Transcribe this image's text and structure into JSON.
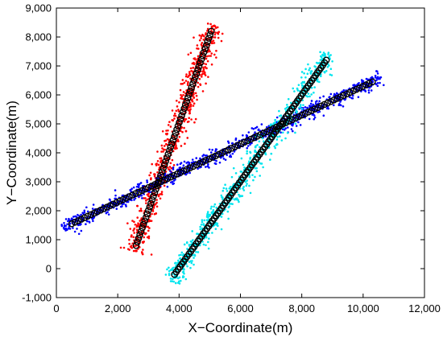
{
  "chart_data": {
    "type": "scatter",
    "title": "",
    "xlabel": "X−Coordinate(m)",
    "ylabel": "Y−Coordinate(m)",
    "xlim": [
      0,
      12000
    ],
    "ylim": [
      -1000,
      9000
    ],
    "x_ticks": [
      {
        "value": 0,
        "label": "0"
      },
      {
        "value": 2000,
        "label": "2,000"
      },
      {
        "value": 4000,
        "label": "4,000"
      },
      {
        "value": 6000,
        "label": "6,000"
      },
      {
        "value": 8000,
        "label": "8,000"
      },
      {
        "value": 10000,
        "label": "10,000"
      },
      {
        "value": 12000,
        "label": "12,000"
      }
    ],
    "y_ticks": [
      {
        "value": -1000,
        "label": "-1,000"
      },
      {
        "value": 0,
        "label": "0"
      },
      {
        "value": 1000,
        "label": "1,000"
      },
      {
        "value": 2000,
        "label": "2,000"
      },
      {
        "value": 3000,
        "label": "3,000"
      },
      {
        "value": 4000,
        "label": "4,000"
      },
      {
        "value": 5000,
        "label": "5,000"
      },
      {
        "value": 6000,
        "label": "6,000"
      },
      {
        "value": 7000,
        "label": "7,000"
      },
      {
        "value": 8000,
        "label": "8,000"
      },
      {
        "value": 9000,
        "label": "9,000"
      }
    ],
    "grid": false,
    "legend": "none",
    "series": [
      {
        "color": "#ff0000",
        "marker": "dot",
        "start": [
          2600,
          800
        ],
        "end": [
          5050,
          8200
        ],
        "spread_across": 300,
        "count": 700
      },
      {
        "color": "#0000ff",
        "marker": "dot",
        "start": [
          500,
          1550
        ],
        "end": [
          10300,
          6450
        ],
        "spread_across": 230,
        "count": 900
      },
      {
        "color": "#00e5ee",
        "marker": "dot",
        "start": [
          3850,
          -200
        ],
        "end": [
          8800,
          7200
        ],
        "spread_across": 300,
        "count": 750
      },
      {
        "color": "#000000",
        "marker": "open-circle",
        "start": [
          2600,
          800
        ],
        "end": [
          5050,
          8200
        ],
        "count": 62
      },
      {
        "color": "#000000",
        "marker": "open-circle",
        "start": [
          500,
          1550
        ],
        "end": [
          10300,
          6450
        ],
        "count": 95
      },
      {
        "color": "#000000",
        "marker": "open-circle",
        "start": [
          3850,
          -200
        ],
        "end": [
          8800,
          7200
        ],
        "count": 85
      }
    ]
  }
}
